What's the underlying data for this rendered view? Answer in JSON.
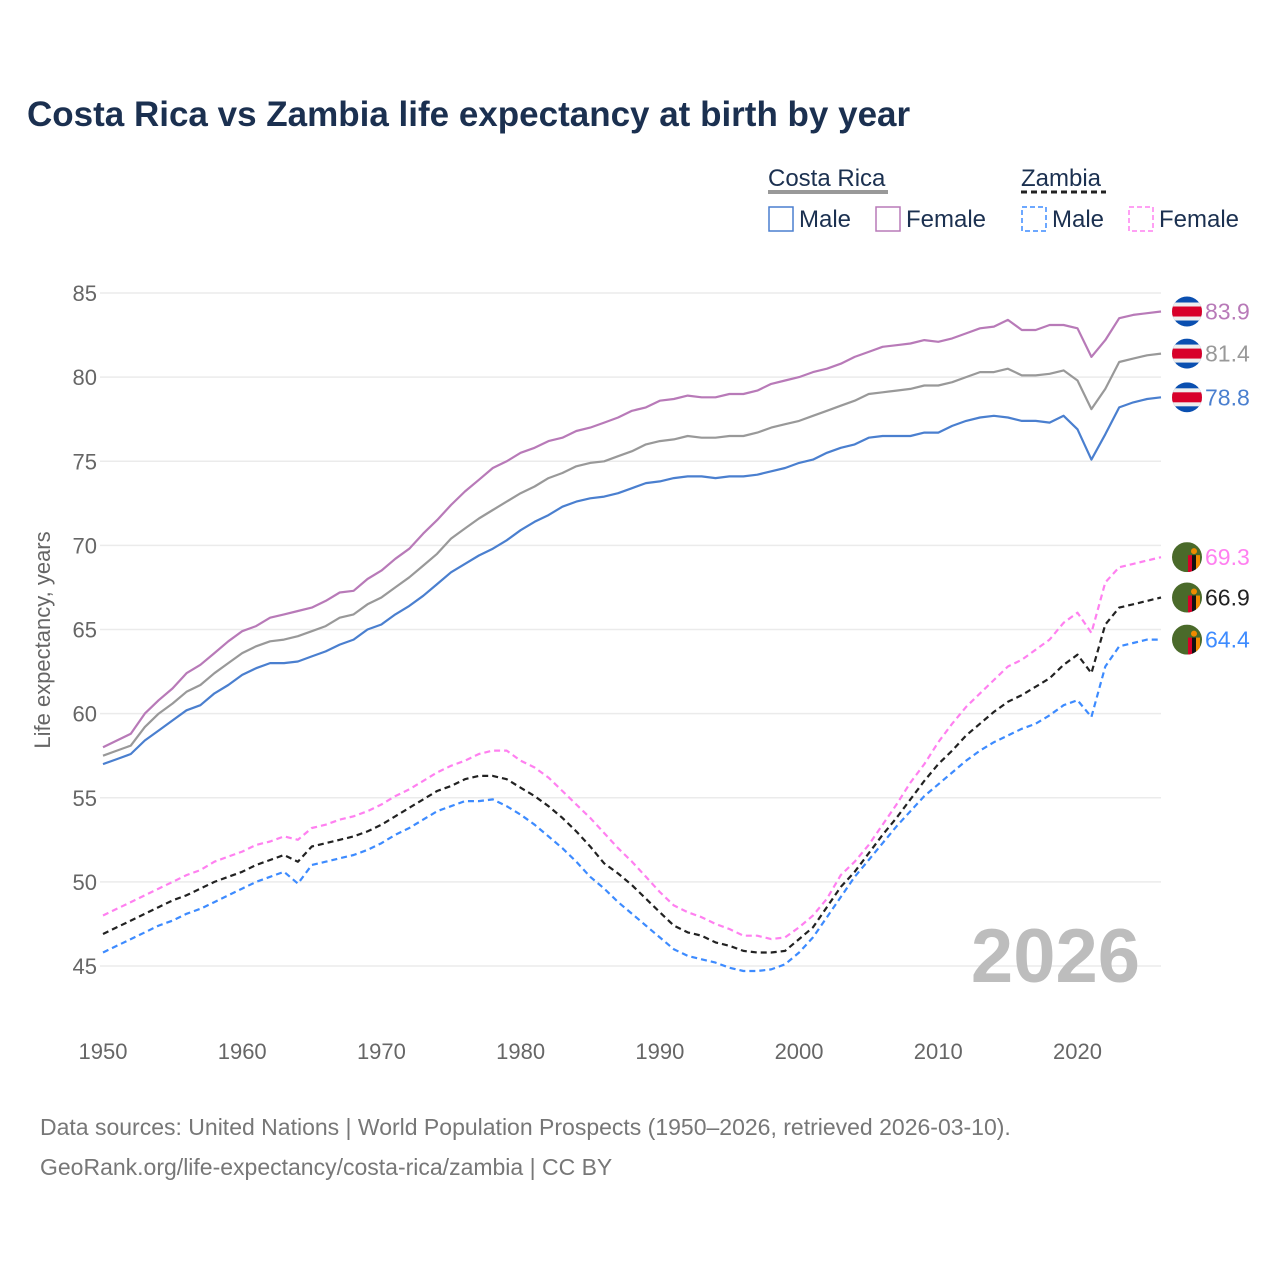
{
  "chart_data": {
    "type": "line",
    "title": "Costa Rica vs Zambia life expectancy at birth by year",
    "xlabel": "",
    "ylabel": "Life expectancy, years",
    "xlim": [
      1950,
      2026
    ],
    "ylim": [
      45,
      85
    ],
    "yticks": [
      "45",
      "50",
      "55",
      "60",
      "65",
      "70",
      "75",
      "80",
      "85"
    ],
    "xticks": [
      "1950",
      "1960",
      "1970",
      "1980",
      "1990",
      "2000",
      "2010",
      "2020"
    ],
    "grid": true,
    "year_watermark": "2026",
    "legend": {
      "groups": [
        {
          "label": "Costa Rica",
          "items": [
            "Male",
            "Female"
          ]
        },
        {
          "label": "Zambia",
          "items": [
            "Male",
            "Female"
          ]
        }
      ],
      "placement": "top-right"
    },
    "x_start": 1950,
    "series": [
      {
        "name": "Costa Rica Female",
        "color": "#b87ab8",
        "dashed": false,
        "end_label": "83.9",
        "values": [
          58.0,
          58.4,
          58.8,
          60.0,
          60.8,
          61.5,
          62.4,
          62.9,
          63.6,
          64.3,
          64.9,
          65.2,
          65.7,
          65.9,
          66.1,
          66.3,
          66.7,
          67.2,
          67.3,
          68.0,
          68.5,
          69.2,
          69.8,
          70.7,
          71.5,
          72.4,
          73.2,
          73.9,
          74.6,
          75.0,
          75.5,
          75.8,
          76.2,
          76.4,
          76.8,
          77.0,
          77.3,
          77.6,
          78.0,
          78.2,
          78.6,
          78.7,
          78.9,
          78.8,
          78.8,
          79.0,
          79.0,
          79.2,
          79.6,
          79.8,
          80.0,
          80.3,
          80.5,
          80.8,
          81.2,
          81.5,
          81.8,
          81.9,
          82.0,
          82.2,
          82.1,
          82.3,
          82.6,
          82.9,
          83.0,
          83.4,
          82.8,
          82.8,
          83.1,
          83.1,
          82.9,
          81.2,
          82.2,
          83.5,
          83.7,
          83.8,
          83.9
        ]
      },
      {
        "name": "Costa Rica Total",
        "color": "#999999",
        "dashed": false,
        "end_label": "81.4",
        "values": [
          57.5,
          57.8,
          58.1,
          59.2,
          60.0,
          60.6,
          61.3,
          61.7,
          62.4,
          63.0,
          63.6,
          64.0,
          64.3,
          64.4,
          64.6,
          64.9,
          65.2,
          65.7,
          65.9,
          66.5,
          66.9,
          67.5,
          68.1,
          68.8,
          69.5,
          70.4,
          71.0,
          71.6,
          72.1,
          72.6,
          73.1,
          73.5,
          74.0,
          74.3,
          74.7,
          74.9,
          75.0,
          75.3,
          75.6,
          76.0,
          76.2,
          76.3,
          76.5,
          76.4,
          76.4,
          76.5,
          76.5,
          76.7,
          77.0,
          77.2,
          77.4,
          77.7,
          78.0,
          78.3,
          78.6,
          79.0,
          79.1,
          79.2,
          79.3,
          79.5,
          79.5,
          79.7,
          80.0,
          80.3,
          80.3,
          80.5,
          80.1,
          80.1,
          80.2,
          80.4,
          79.8,
          78.1,
          79.3,
          80.9,
          81.1,
          81.3,
          81.4
        ]
      },
      {
        "name": "Costa Rica Male",
        "color": "#4a7fcf",
        "dashed": false,
        "end_label": "78.8",
        "values": [
          57.0,
          57.3,
          57.6,
          58.4,
          59.0,
          59.6,
          60.2,
          60.5,
          61.2,
          61.7,
          62.3,
          62.7,
          63.0,
          63.0,
          63.1,
          63.4,
          63.7,
          64.1,
          64.4,
          65.0,
          65.3,
          65.9,
          66.4,
          67.0,
          67.7,
          68.4,
          68.9,
          69.4,
          69.8,
          70.3,
          70.9,
          71.4,
          71.8,
          72.3,
          72.6,
          72.8,
          72.9,
          73.1,
          73.4,
          73.7,
          73.8,
          74.0,
          74.1,
          74.1,
          74.0,
          74.1,
          74.1,
          74.2,
          74.4,
          74.6,
          74.9,
          75.1,
          75.5,
          75.8,
          76.0,
          76.4,
          76.5,
          76.5,
          76.5,
          76.7,
          76.7,
          77.1,
          77.4,
          77.6,
          77.7,
          77.6,
          77.4,
          77.4,
          77.3,
          77.7,
          76.9,
          75.1,
          76.6,
          78.2,
          78.5,
          78.7,
          78.8
        ]
      },
      {
        "name": "Zambia Female",
        "color": "#ff80f0",
        "dashed": true,
        "end_label": "69.3",
        "values": [
          48.0,
          48.4,
          48.8,
          49.2,
          49.6,
          50.0,
          50.4,
          50.7,
          51.2,
          51.5,
          51.8,
          52.2,
          52.4,
          52.7,
          52.5,
          53.2,
          53.4,
          53.7,
          53.9,
          54.2,
          54.6,
          55.1,
          55.5,
          56.0,
          56.5,
          56.9,
          57.2,
          57.6,
          57.8,
          57.8,
          57.2,
          56.8,
          56.2,
          55.4,
          54.6,
          53.8,
          52.9,
          52.0,
          51.2,
          50.3,
          49.4,
          48.6,
          48.2,
          47.9,
          47.5,
          47.2,
          46.8,
          46.8,
          46.6,
          46.7,
          47.3,
          48.0,
          49.0,
          50.4,
          51.2,
          52.2,
          53.4,
          54.6,
          55.9,
          57.0,
          58.3,
          59.4,
          60.4,
          61.2,
          62.0,
          62.8,
          63.2,
          63.8,
          64.4,
          65.4,
          66.0,
          64.8,
          67.8,
          68.7,
          68.9,
          69.1,
          69.3
        ]
      },
      {
        "name": "Zambia Total",
        "color": "#222222",
        "dashed": true,
        "end_label": "66.9",
        "values": [
          46.9,
          47.3,
          47.7,
          48.1,
          48.5,
          48.9,
          49.2,
          49.6,
          50.0,
          50.3,
          50.6,
          51.0,
          51.3,
          51.6,
          51.2,
          52.1,
          52.3,
          52.5,
          52.7,
          53.0,
          53.4,
          53.9,
          54.4,
          54.9,
          55.4,
          55.7,
          56.1,
          56.3,
          56.3,
          56.1,
          55.6,
          55.1,
          54.5,
          53.8,
          53.0,
          52.1,
          51.1,
          50.5,
          49.8,
          49.0,
          48.2,
          47.4,
          47.0,
          46.8,
          46.4,
          46.2,
          45.9,
          45.8,
          45.8,
          45.9,
          46.6,
          47.3,
          48.5,
          49.7,
          50.6,
          51.7,
          52.8,
          53.8,
          54.9,
          56.0,
          57.0,
          57.8,
          58.7,
          59.4,
          60.1,
          60.7,
          61.1,
          61.6,
          62.1,
          62.9,
          63.5,
          62.4,
          65.3,
          66.3,
          66.5,
          66.7,
          66.9
        ]
      },
      {
        "name": "Zambia Male",
        "color": "#3d8bff",
        "dashed": true,
        "end_label": "64.4",
        "values": [
          45.8,
          46.2,
          46.6,
          47.0,
          47.4,
          47.7,
          48.1,
          48.4,
          48.8,
          49.2,
          49.6,
          50.0,
          50.3,
          50.6,
          49.9,
          51.0,
          51.2,
          51.4,
          51.6,
          51.9,
          52.3,
          52.8,
          53.2,
          53.7,
          54.2,
          54.5,
          54.8,
          54.8,
          54.9,
          54.5,
          54.0,
          53.4,
          52.7,
          52.0,
          51.2,
          50.3,
          49.6,
          48.8,
          48.1,
          47.4,
          46.7,
          46.0,
          45.6,
          45.4,
          45.2,
          44.9,
          44.7,
          44.7,
          44.8,
          45.1,
          45.8,
          46.7,
          47.9,
          49.1,
          50.3,
          51.3,
          52.3,
          53.3,
          54.2,
          55.1,
          55.8,
          56.5,
          57.2,
          57.8,
          58.3,
          58.7,
          59.1,
          59.4,
          59.9,
          60.5,
          60.8,
          59.8,
          62.8,
          64.0,
          64.2,
          64.4,
          64.4
        ]
      }
    ]
  },
  "source": {
    "line1": "Data sources: United Nations | World Population Prospects (1950–2026, retrieved 2026-03-10).",
    "line2": "GeoRank.org/life-expectancy/costa-rica/zambia | CC BY"
  }
}
